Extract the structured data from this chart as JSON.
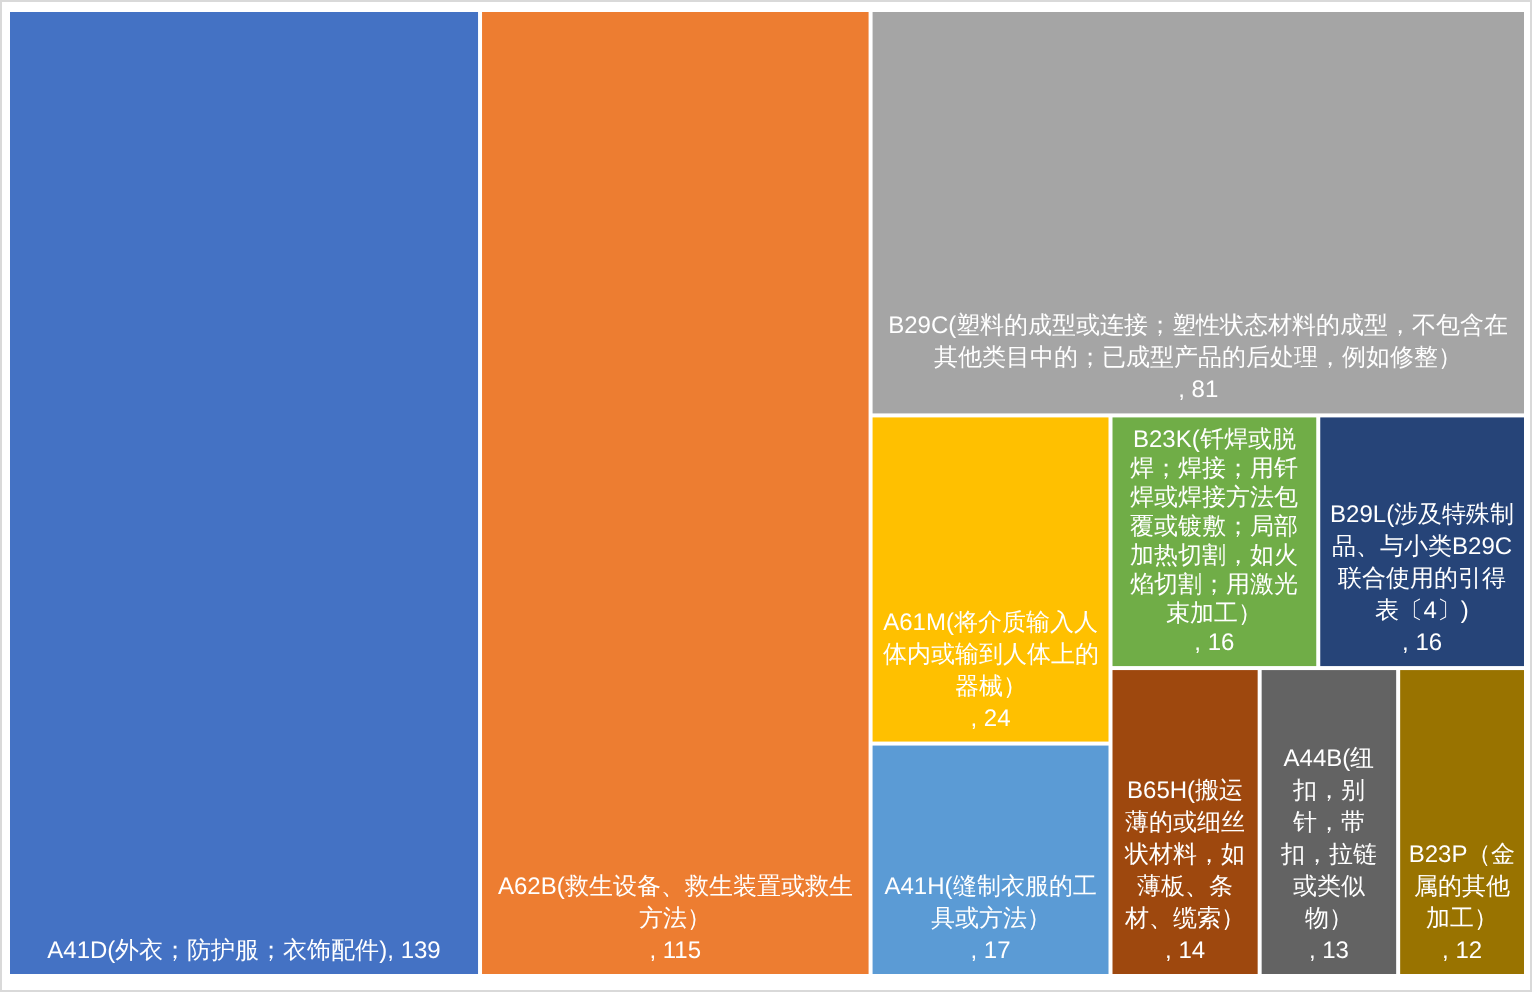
{
  "chart_data": {
    "type": "other",
    "categories": [
      "A41D(外衣；防护服；衣饰配件)",
      "A62B(救生设备、救生装置或救生方法）",
      "B29C(塑料的成型或连接；塑性状态材料的成型，不包含在其他类目中的；已成型产品的后处理，例如修整）",
      "A61M(将介质输入人体内或输到人体上的器械）",
      "A41H(缝制衣服的工具或方法）",
      "B23K(钎焊或脱焊；焊接；用钎焊或焊接方法包覆或镀敷；局部加热切割，如火焰切割；用激光束加工）",
      "B29L(涉及特殊制品、与小类B29C联合使用的引得表〔4〕)",
      "B65H(搬运薄的或细丝状材料，如薄板、条材、缆索）",
      "A44B(纽扣，别针，带扣，拉链或类似物）",
      "B23P（金属的其他加工）"
    ],
    "values": [
      139,
      115,
      81,
      24,
      17,
      16,
      16,
      14,
      13,
      12
    ],
    "value_labels": [
      ", 139",
      ", 115",
      ", 81",
      ", 24",
      ", 17",
      ", 16",
      ", 16",
      ", 14",
      ", 13",
      ", 12"
    ],
    "colors": [
      "#4472c4",
      "#ed7d31",
      "#a5a5a5",
      "#ffc000",
      "#5b9bd5",
      "#70ad47",
      "#264478",
      "#9e480e",
      "#636363",
      "#997300"
    ]
  }
}
